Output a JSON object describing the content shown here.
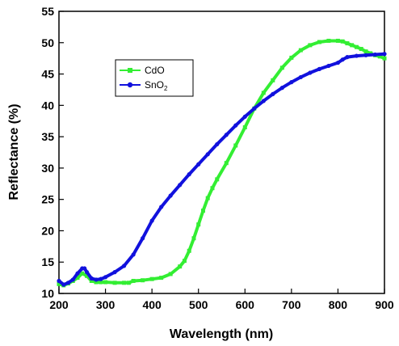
{
  "chart_data": {
    "type": "line",
    "xlabel": "Wavelength (nm)",
    "ylabel": "Reflectance (%)",
    "xlim": [
      200,
      900
    ],
    "ylim": [
      10,
      55
    ],
    "xticks": [
      "200",
      "300",
      "400",
      "500",
      "600",
      "700",
      "800",
      "900"
    ],
    "yticks": [
      "10",
      "15",
      "20",
      "25",
      "30",
      "35",
      "40",
      "45",
      "50",
      "55"
    ],
    "grid": false,
    "legend_position": "upper-left",
    "series": [
      {
        "name": "CdO",
        "name_main": "CdO",
        "name_sub": "",
        "color": "#33ee33",
        "marker": "square",
        "x": [
          200,
          210,
          220,
          230,
          240,
          250,
          260,
          270,
          280,
          290,
          300,
          320,
          340,
          350,
          360,
          380,
          400,
          420,
          440,
          460,
          470,
          480,
          490,
          500,
          510,
          520,
          530,
          540,
          560,
          580,
          600,
          620,
          640,
          660,
          680,
          700,
          720,
          740,
          760,
          780,
          800,
          810,
          820,
          830,
          840,
          850,
          860,
          870,
          880,
          890,
          900
        ],
        "y": [
          11.5,
          11.3,
          11.6,
          12.0,
          12.5,
          13.2,
          12.8,
          12.0,
          11.8,
          11.8,
          11.8,
          11.7,
          11.7,
          11.7,
          12.0,
          12.1,
          12.3,
          12.5,
          13.1,
          14.3,
          15.2,
          16.8,
          18.8,
          21.0,
          23.2,
          25.2,
          26.8,
          28.2,
          30.8,
          33.6,
          36.5,
          39.5,
          42.0,
          44.0,
          46.0,
          47.6,
          48.8,
          49.6,
          50.1,
          50.3,
          50.3,
          50.2,
          49.9,
          49.6,
          49.3,
          49.0,
          48.6,
          48.3,
          48.0,
          47.8,
          47.5
        ]
      },
      {
        "name": "SnO2",
        "name_main": "SnO",
        "name_sub": "2",
        "color": "#1111dd",
        "marker": "circle",
        "x": [
          200,
          210,
          220,
          230,
          240,
          250,
          255,
          260,
          270,
          280,
          290,
          300,
          320,
          340,
          360,
          380,
          400,
          420,
          440,
          460,
          480,
          500,
          520,
          540,
          560,
          580,
          600,
          620,
          640,
          660,
          680,
          700,
          720,
          740,
          760,
          780,
          800,
          810,
          820,
          840,
          860,
          880,
          900
        ],
        "y": [
          12.0,
          11.4,
          11.7,
          12.2,
          13.2,
          14.0,
          14.0,
          13.4,
          12.4,
          12.2,
          12.3,
          12.6,
          13.4,
          14.4,
          16.2,
          18.8,
          21.6,
          23.8,
          25.6,
          27.3,
          29.0,
          30.6,
          32.2,
          33.8,
          35.3,
          36.8,
          38.2,
          39.5,
          40.7,
          41.8,
          42.8,
          43.7,
          44.5,
          45.2,
          45.8,
          46.3,
          46.8,
          47.3,
          47.7,
          47.9,
          48.0,
          48.1,
          48.2
        ]
      }
    ]
  }
}
